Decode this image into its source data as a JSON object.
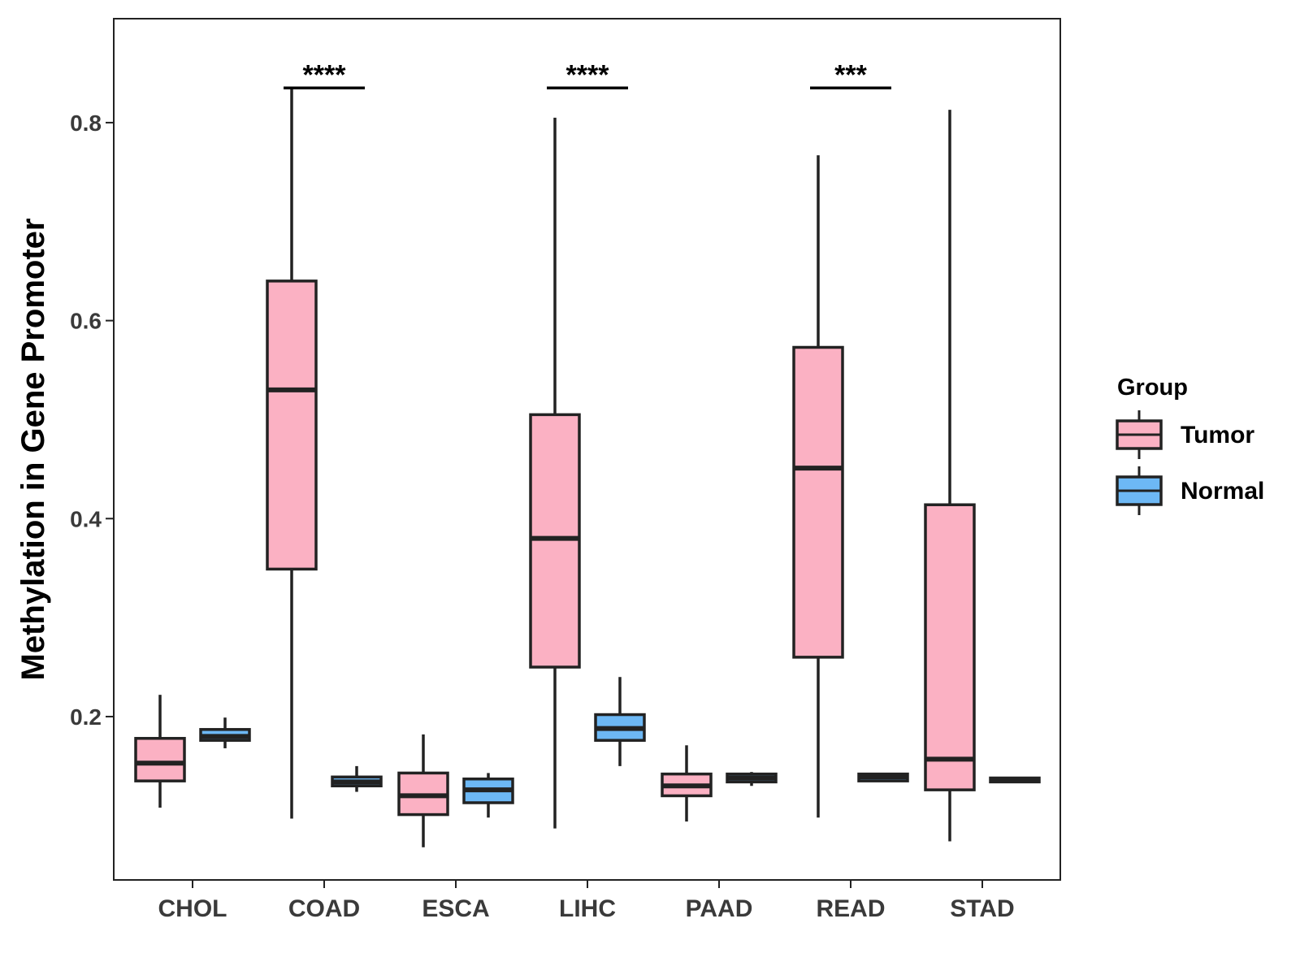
{
  "chart_data": {
    "type": "boxplot",
    "title": "",
    "xlabel": "",
    "ylabel": "Methylation in Gene Promoter",
    "ylim": [
      0.035,
      0.905
    ],
    "yticks": [
      0.2,
      0.4,
      0.6,
      0.8
    ],
    "ytick_labels": [
      "0.2",
      "0.4",
      "0.6",
      "0.8"
    ],
    "grid": false,
    "categories": [
      "CHOL",
      "COAD",
      "ESCA",
      "LIHC",
      "PAAD",
      "READ",
      "STAD"
    ],
    "legend": {
      "title": "Group",
      "position": "right",
      "items": [
        {
          "label": "Tumor",
          "color": "#fbb1c3"
        },
        {
          "label": "Normal",
          "color": "#6db8f5"
        }
      ]
    },
    "series": [
      {
        "name": "Tumor",
        "color": "#fbb1c3",
        "boxes": [
          {
            "category": "CHOL",
            "whisker_low": 0.108,
            "q1": 0.135,
            "median": 0.153,
            "q3": 0.178,
            "whisker_high": 0.222
          },
          {
            "category": "COAD",
            "whisker_low": 0.097,
            "q1": 0.349,
            "median": 0.53,
            "q3": 0.64,
            "whisker_high": 0.836
          },
          {
            "category": "ESCA",
            "whisker_low": 0.068,
            "q1": 0.101,
            "median": 0.12,
            "q3": 0.143,
            "whisker_high": 0.182
          },
          {
            "category": "LIHC",
            "whisker_low": 0.087,
            "q1": 0.25,
            "median": 0.38,
            "q3": 0.505,
            "whisker_high": 0.805
          },
          {
            "category": "PAAD",
            "whisker_low": 0.094,
            "q1": 0.12,
            "median": 0.13,
            "q3": 0.142,
            "whisker_high": 0.171
          },
          {
            "category": "READ",
            "whisker_low": 0.098,
            "q1": 0.26,
            "median": 0.451,
            "q3": 0.573,
            "whisker_high": 0.767
          },
          {
            "category": "STAD",
            "whisker_low": 0.074,
            "q1": 0.126,
            "median": 0.157,
            "q3": 0.414,
            "whisker_high": 0.813
          }
        ]
      },
      {
        "name": "Normal",
        "color": "#6db8f5",
        "boxes": [
          {
            "category": "CHOL",
            "whisker_low": 0.168,
            "q1": 0.176,
            "median": 0.18,
            "q3": 0.187,
            "whisker_high": 0.199
          },
          {
            "category": "COAD",
            "whisker_low": 0.124,
            "q1": 0.13,
            "median": 0.134,
            "q3": 0.139,
            "whisker_high": 0.15
          },
          {
            "category": "ESCA",
            "whisker_low": 0.098,
            "q1": 0.113,
            "median": 0.126,
            "q3": 0.137,
            "whisker_high": 0.143
          },
          {
            "category": "LIHC",
            "whisker_low": 0.15,
            "q1": 0.176,
            "median": 0.188,
            "q3": 0.202,
            "whisker_high": 0.24
          },
          {
            "category": "PAAD",
            "whisker_low": 0.13,
            "q1": 0.134,
            "median": 0.138,
            "q3": 0.142,
            "whisker_high": 0.144
          },
          {
            "category": "READ",
            "whisker_low": 0.134,
            "q1": 0.135,
            "median": 0.139,
            "q3": 0.142,
            "whisker_high": 0.143
          },
          {
            "category": "STAD",
            "whisker_low": 0.133,
            "q1": 0.134,
            "median": 0.136,
            "q3": 0.138,
            "whisker_high": 0.139
          }
        ]
      }
    ],
    "annotations": [
      {
        "category": "COAD",
        "label": "****",
        "y": 0.835
      },
      {
        "category": "LIHC",
        "label": "****",
        "y": 0.835
      },
      {
        "category": "READ",
        "label": "***",
        "y": 0.835
      }
    ]
  }
}
